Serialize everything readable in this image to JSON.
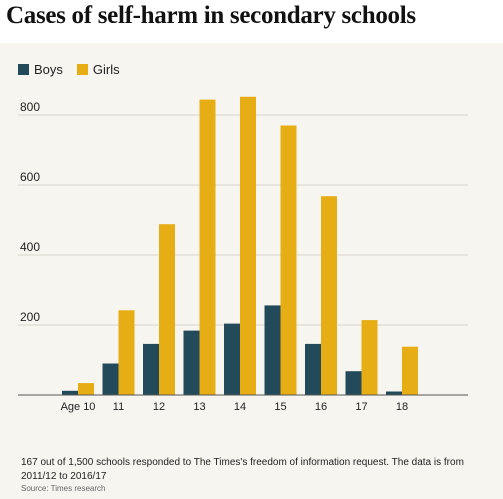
{
  "title": "Cases of self-harm in secondary schools",
  "legend": {
    "boys_label": "Boys",
    "girls_label": "Girls"
  },
  "colors": {
    "boys": "#234a5b",
    "girls": "#e7ad14",
    "grid": "#d8d5cc",
    "axis": "#555555",
    "background": "#f7f5ef"
  },
  "chart_data": {
    "type": "bar",
    "categories": [
      "Age 10",
      "11",
      "12",
      "13",
      "14",
      "15",
      "16",
      "17",
      "18"
    ],
    "series": [
      {
        "name": "Boys",
        "values": [
          12,
          90,
          146,
          184,
          204,
          256,
          146,
          68,
          10
        ]
      },
      {
        "name": "Girls",
        "values": [
          34,
          242,
          488,
          844,
          852,
          770,
          568,
          214,
          138
        ]
      }
    ],
    "y_ticks": [
      200,
      400,
      600,
      800
    ],
    "ylim": [
      0,
      880
    ],
    "grid": true,
    "legend_position": "top-left"
  },
  "footnote": "167 out of 1,500 schools responded to The Times's freedom of information request. The data is from 2011/12 to 2016/17",
  "source": "Source: Times research"
}
